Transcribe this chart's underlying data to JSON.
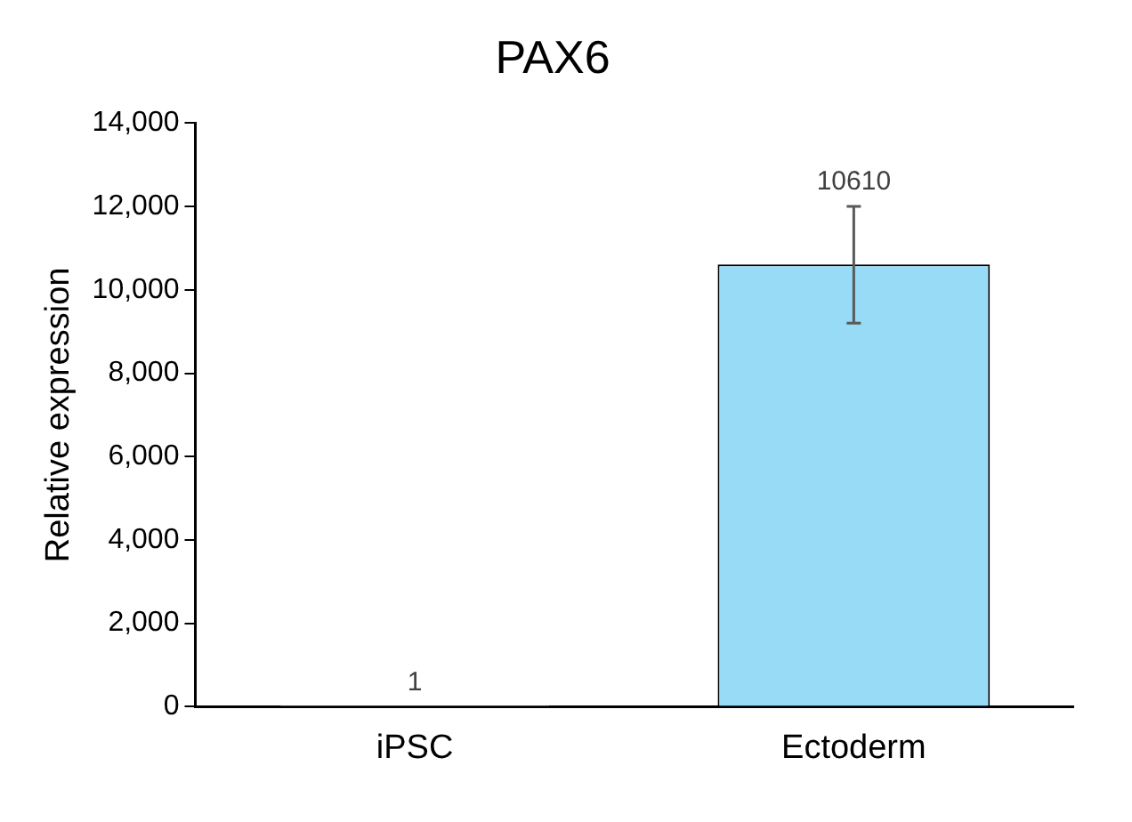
{
  "chart_data": {
    "type": "bar",
    "title": "PAX6",
    "ylabel": "Relative expression",
    "categories": [
      "iPSC",
      "Ectoderm"
    ],
    "values": [
      1,
      10610
    ],
    "errors": [
      null,
      [
        9200,
        12000
      ]
    ],
    "color": "#97dbf7",
    "ylim": [
      0,
      14000
    ],
    "yticks": [
      {
        "value": 0,
        "label": "0"
      },
      {
        "value": 2000,
        "label": "2,000"
      },
      {
        "value": 4000,
        "label": "4,000"
      },
      {
        "value": 6000,
        "label": "6,000"
      },
      {
        "value": 8000,
        "label": "8,000"
      },
      {
        "value": 10000,
        "label": "10,000"
      },
      {
        "value": 12000,
        "label": "12,000"
      },
      {
        "value": 14000,
        "label": "14,000"
      }
    ],
    "data_labels": true,
    "grid": false,
    "legend": false
  }
}
